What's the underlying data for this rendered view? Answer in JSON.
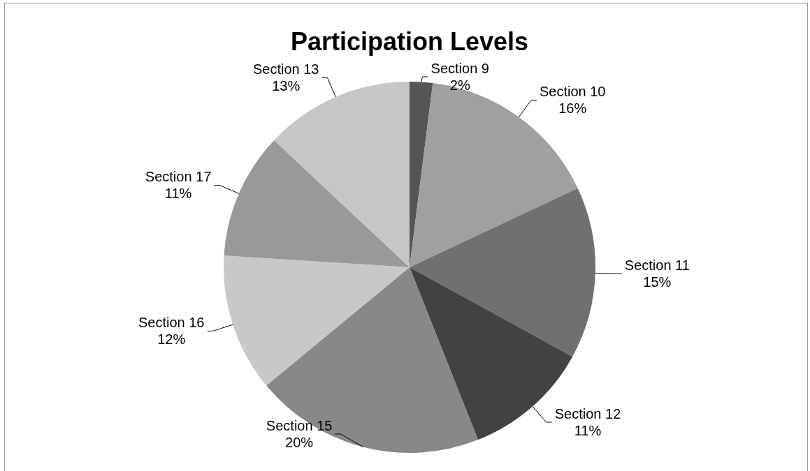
{
  "chart_data": {
    "type": "pie",
    "title": "Participation Levels",
    "categories": [
      "Section 9",
      "Section 10",
      "Section 11",
      "Section 12",
      "Section 15",
      "Section 16",
      "Section 17",
      "Section 13"
    ],
    "values": [
      2,
      16,
      15,
      11,
      20,
      12,
      11,
      13
    ],
    "colors": [
      "#555555",
      "#a0a0a0",
      "#707070",
      "#424242",
      "#888888",
      "#c8c8c8",
      "#999999",
      "#c6c6c6"
    ],
    "value_labels": [
      "2%",
      "16%",
      "15%",
      "11%",
      "20%",
      "12%",
      "11%",
      "13%"
    ],
    "legend": false
  }
}
